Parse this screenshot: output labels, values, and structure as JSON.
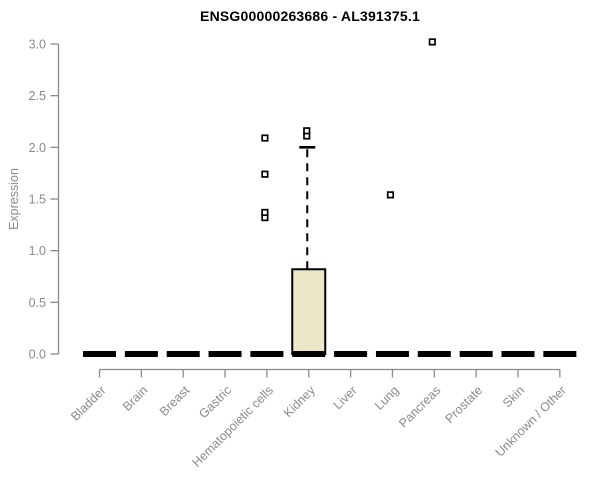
{
  "title": "ENSG00000263686 - AL391375.1",
  "colors": {
    "background": "#ffffff",
    "axis": "#8a8a8a",
    "tick_text": "#8a8a8a",
    "box_fill": "#ede7ca",
    "box_stroke": "#000000",
    "median": "#000000",
    "outlier_stroke": "#000000",
    "title_text": "#000000"
  },
  "chart_data": {
    "type": "boxplot",
    "title": "ENSG00000263686 - AL391375.1",
    "xlabel": "",
    "ylabel": "Expression",
    "ylim": [
      0.0,
      3.0
    ],
    "yticks": [
      0.0,
      0.5,
      1.0,
      1.5,
      2.0,
      2.5,
      3.0
    ],
    "grid": false,
    "legend": false,
    "categories": [
      "Bladder",
      "Brain",
      "Breast",
      "Gastric",
      "Hematopoietic cells",
      "Kidney",
      "Liver",
      "Lung",
      "Pancreas",
      "Prostate",
      "Skin",
      "Unknown / Other"
    ],
    "boxes": [
      {
        "category": "Bladder",
        "min": 0,
        "q1": 0,
        "median": 0,
        "q3": 0,
        "max": 0,
        "outliers": []
      },
      {
        "category": "Brain",
        "min": 0,
        "q1": 0,
        "median": 0,
        "q3": 0,
        "max": 0,
        "outliers": []
      },
      {
        "category": "Breast",
        "min": 0,
        "q1": 0,
        "median": 0,
        "q3": 0,
        "max": 0,
        "outliers": []
      },
      {
        "category": "Gastric",
        "min": 0,
        "q1": 0,
        "median": 0,
        "q3": 0,
        "max": 0,
        "outliers": []
      },
      {
        "category": "Hematopoietic cells",
        "min": 0,
        "q1": 0,
        "median": 0,
        "q3": 0,
        "max": 0,
        "outliers": [
          1.32,
          1.37,
          1.74,
          2.09
        ]
      },
      {
        "category": "Kidney",
        "min": 0,
        "q1": 0,
        "median": 0,
        "q3": 0.82,
        "max": 2.0,
        "outliers": [
          2.11,
          2.16
        ]
      },
      {
        "category": "Liver",
        "min": 0,
        "q1": 0,
        "median": 0,
        "q3": 0,
        "max": 0,
        "outliers": []
      },
      {
        "category": "Lung",
        "min": 0,
        "q1": 0,
        "median": 0,
        "q3": 0,
        "max": 0,
        "outliers": [
          1.54
        ]
      },
      {
        "category": "Pancreas",
        "min": 0,
        "q1": 0,
        "median": 0,
        "q3": 0,
        "max": 0,
        "outliers": [
          3.02
        ]
      },
      {
        "category": "Prostate",
        "min": 0,
        "q1": 0,
        "median": 0,
        "q3": 0,
        "max": 0,
        "outliers": []
      },
      {
        "category": "Skin",
        "min": 0,
        "q1": 0,
        "median": 0,
        "q3": 0,
        "max": 0,
        "outliers": []
      },
      {
        "category": "Unknown / Other",
        "min": 0,
        "q1": 0,
        "median": 0,
        "q3": 0,
        "max": 0,
        "outliers": []
      }
    ]
  }
}
